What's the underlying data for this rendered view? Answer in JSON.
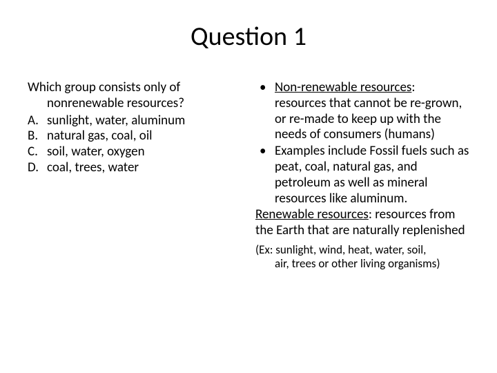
{
  "title": "Question 1",
  "question": {
    "line1": "Which group consists only of",
    "line2": "nonrenewable resources?"
  },
  "answers": [
    {
      "letter": "A.",
      "text": "sunlight, water, aluminum"
    },
    {
      "letter": "B.",
      "text": "natural gas, coal, oil"
    },
    {
      "letter": "C.",
      "text": "soil, water, oxygen"
    },
    {
      "letter": "D.",
      "text": "coal, trees, water"
    }
  ],
  "bullets": [
    {
      "term": "Non-renewable resources",
      "after_term": ": resources that cannot be re-grown, or re-made to keep up with the needs of consumers (humans)"
    },
    {
      "plain": "Examples include Fossil fuels such as peat, coal, natural gas, and petroleum as well as mineral resources like aluminum."
    }
  ],
  "renewable": {
    "term": "Renewable resources",
    "after_term": ": resources from the Earth that are naturally replenished"
  },
  "example": {
    "line1": "(Ex: sunlight, wind, heat, water, soil,",
    "line2": "air, trees or other living organisms)"
  }
}
